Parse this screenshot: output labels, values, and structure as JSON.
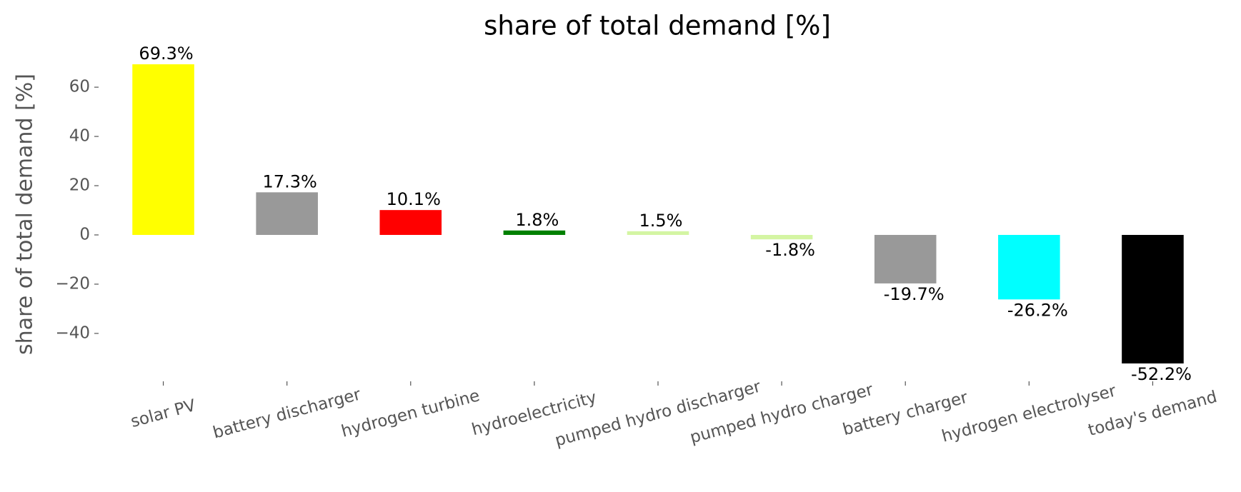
{
  "chart_data": {
    "type": "bar",
    "title": "share of total demand [%]",
    "ylabel": "share of total demand [%]",
    "categories": [
      "solar PV",
      "battery discharger",
      "hydrogen turbine",
      "hydroelectricity",
      "pumped hydro discharger",
      "pumped hydro charger",
      "battery charger",
      "hydrogen electrolyser",
      "today's demand"
    ],
    "values": [
      69.3,
      17.3,
      10.1,
      1.8,
      1.5,
      -1.8,
      -19.7,
      -26.2,
      -52.2
    ],
    "value_labels": [
      "69.3%",
      "17.3%",
      "10.1%",
      "1.8%",
      "1.5%",
      "-1.8%",
      "-19.7%",
      "-26.2%",
      "-52.2%"
    ],
    "colors": [
      "#ffff00",
      "#999999",
      "#ff0000",
      "#008000",
      "#d4f5a3",
      "#d4f5a3",
      "#999999",
      "#00ffff",
      "#000000"
    ],
    "ylim": [
      -58.3,
      75.4
    ],
    "yticks": [
      {
        "value": -40,
        "label": "−40"
      },
      {
        "value": -20,
        "label": "−20"
      },
      0,
      20,
      40,
      60
    ],
    "grid": false
  }
}
